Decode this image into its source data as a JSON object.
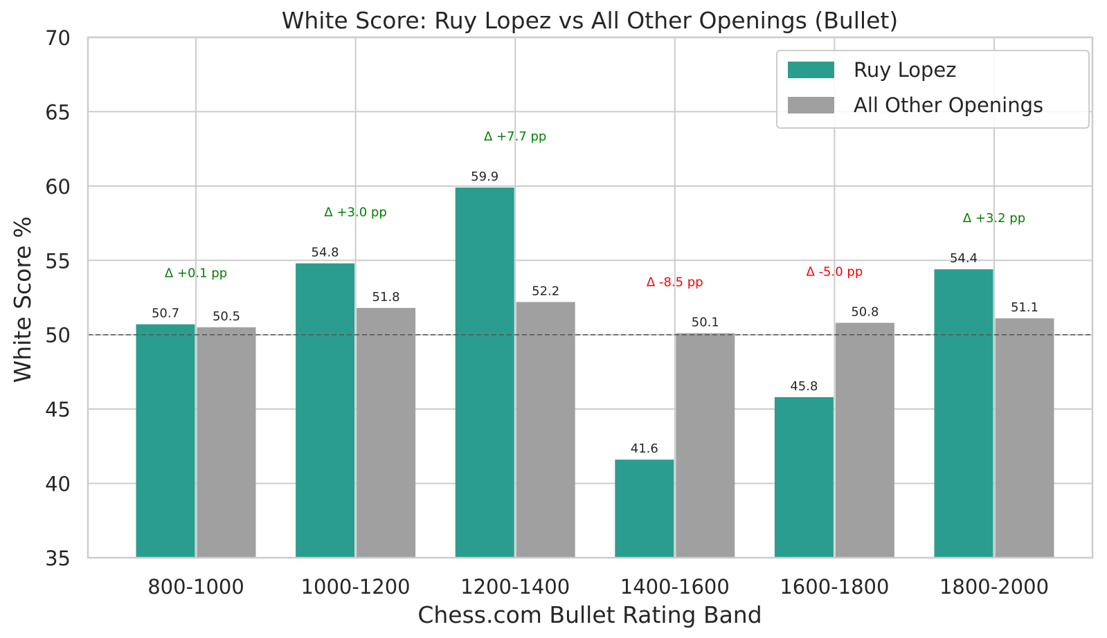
{
  "chart_data": {
    "type": "bar",
    "title": "White Score: Ruy Lopez vs All Other Openings (Bullet)",
    "xlabel": "Chess.com Bullet Rating Band",
    "ylabel": "White Score %",
    "ylim": [
      35,
      70
    ],
    "yticks": [
      35,
      40,
      45,
      50,
      55,
      60,
      65,
      70
    ],
    "grid": true,
    "reference_line": 50,
    "legend_position": "top-right",
    "categories": [
      "800-1000",
      "1000-1200",
      "1200-1400",
      "1400-1600",
      "1600-1800",
      "1800-2000"
    ],
    "series": [
      {
        "name": "Ruy Lopez",
        "color": "#2a9d8f",
        "values": [
          50.7,
          54.8,
          59.9,
          41.6,
          45.8,
          54.4
        ],
        "labels": [
          "50.7",
          "54.8",
          "59.9",
          "41.6",
          "45.8",
          "54.4"
        ]
      },
      {
        "name": "All Other Openings",
        "color": "#a0a0a0",
        "values": [
          50.5,
          51.8,
          52.2,
          50.1,
          50.8,
          51.1
        ],
        "labels": [
          "50.5",
          "51.8",
          "52.2",
          "50.1",
          "50.8",
          "51.1"
        ]
      }
    ],
    "annotations": [
      {
        "text": "Δ +0.1 pp",
        "color": "#008000"
      },
      {
        "text": "Δ +3.0 pp",
        "color": "#008000"
      },
      {
        "text": "Δ +7.7 pp",
        "color": "#008000"
      },
      {
        "text": "Δ -8.5 pp",
        "color": "#ff0000"
      },
      {
        "text": "Δ -5.0 pp",
        "color": "#ff0000"
      },
      {
        "text": "Δ +3.2 pp",
        "color": "#008000"
      }
    ]
  }
}
